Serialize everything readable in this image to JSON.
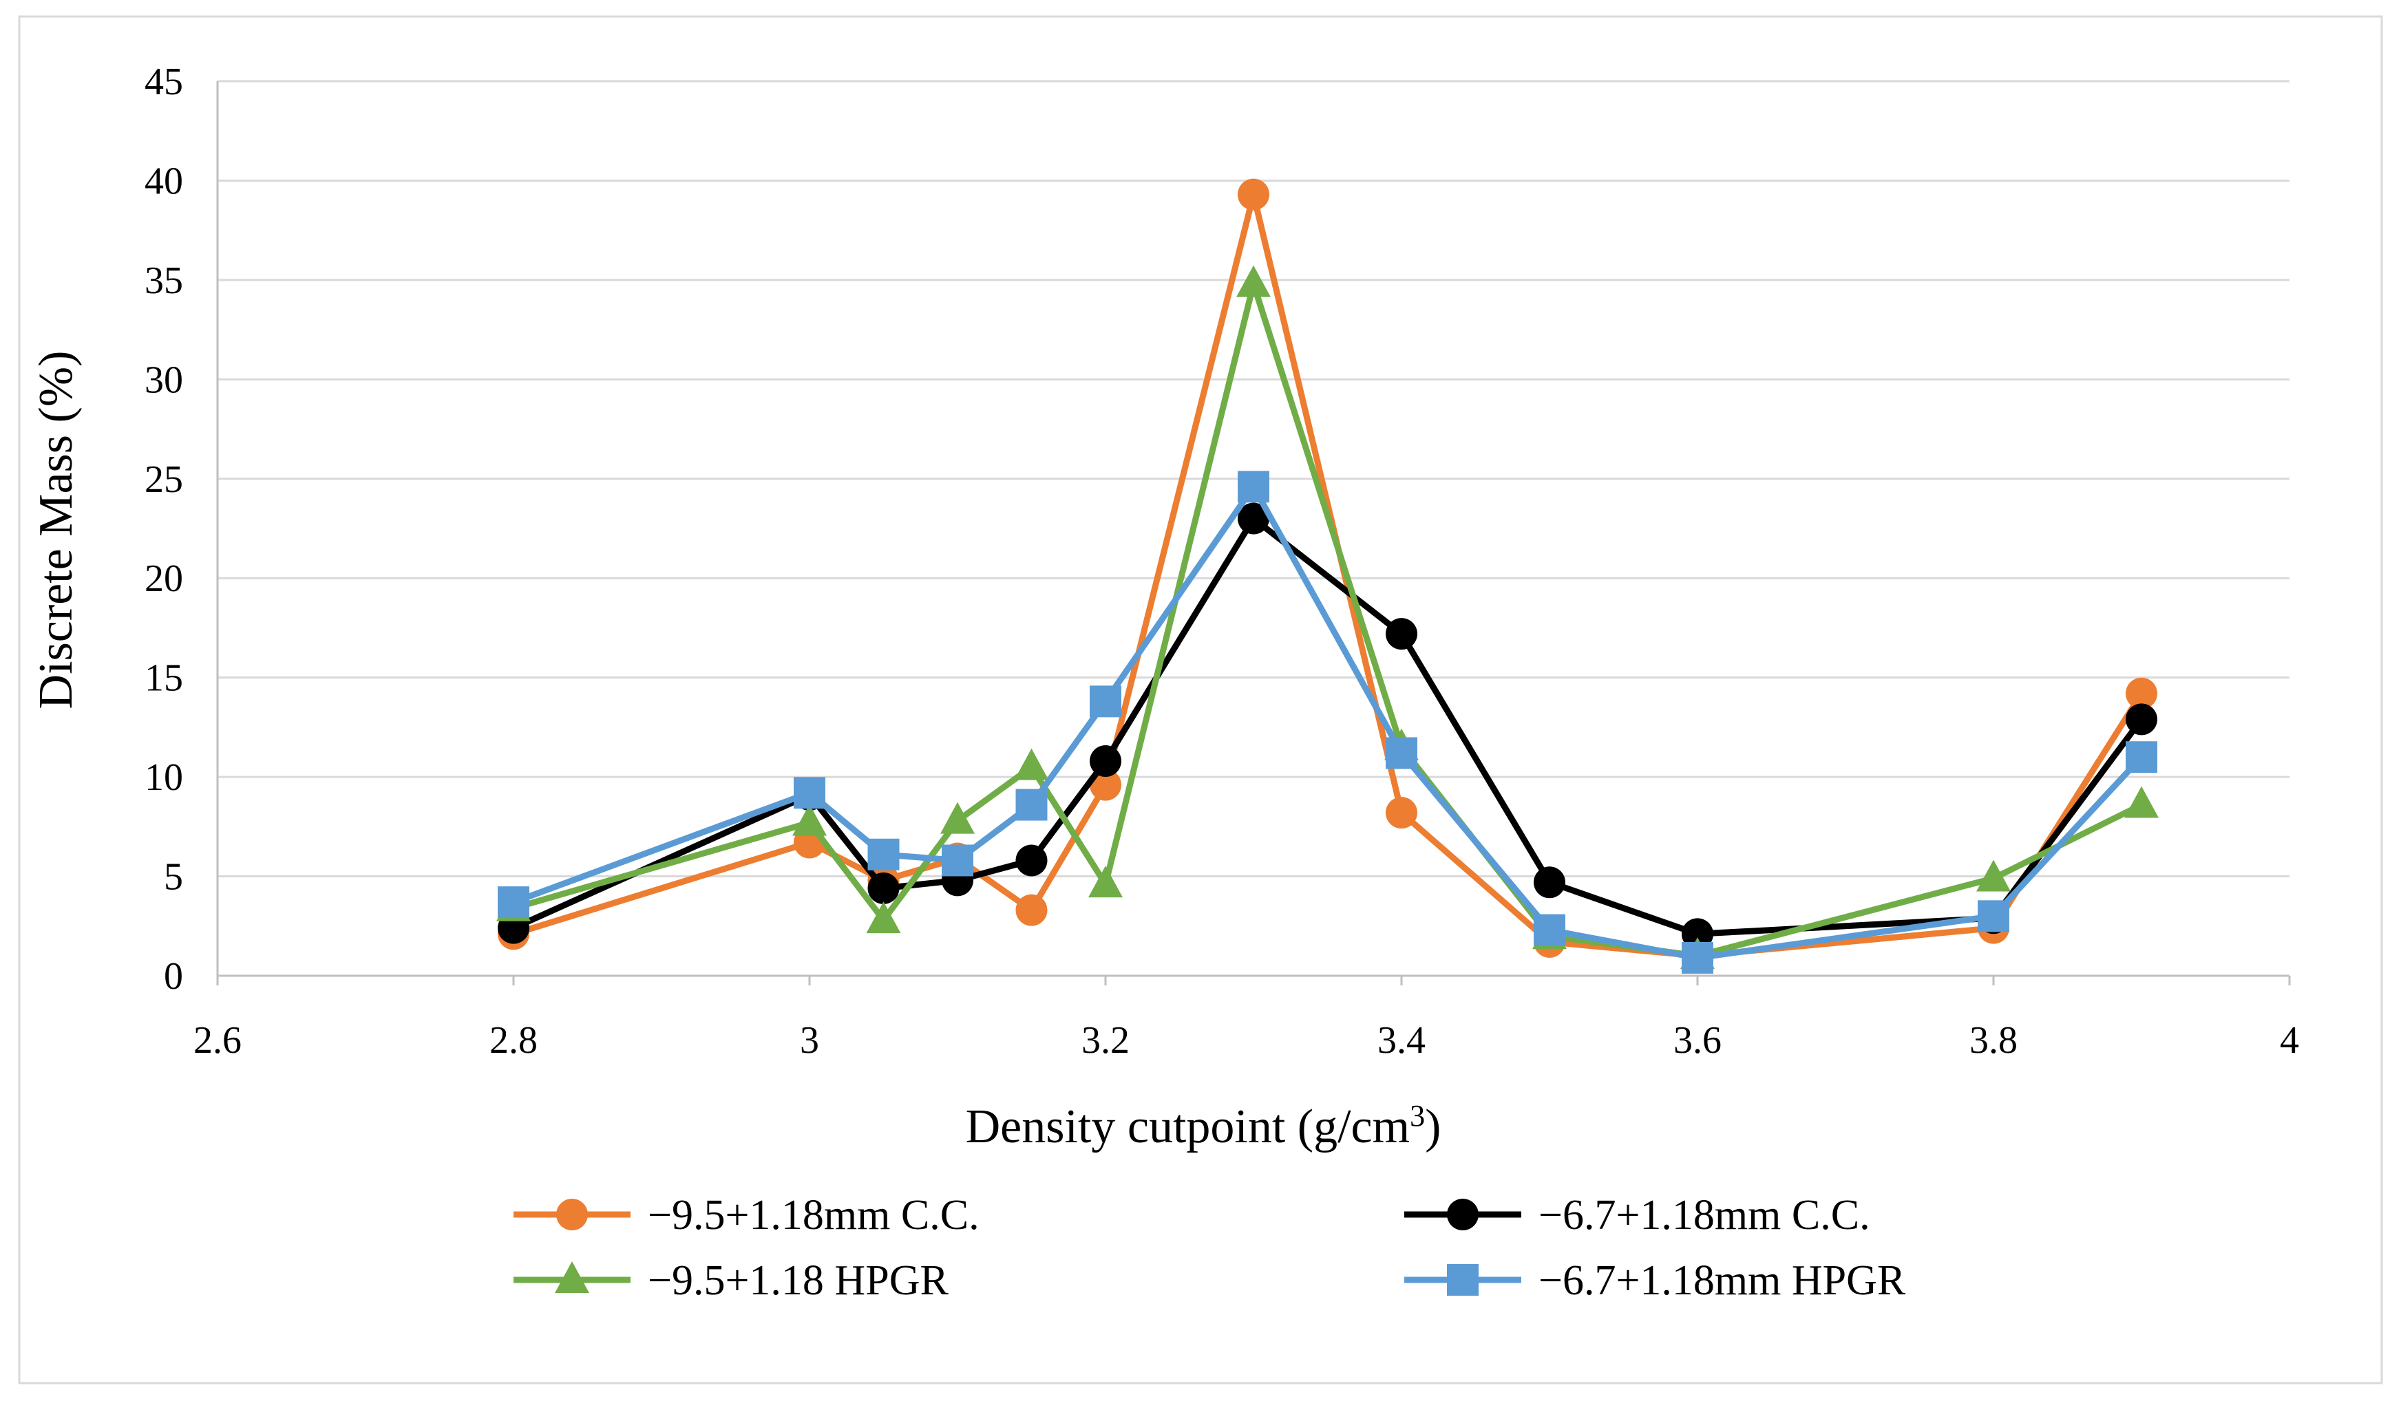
{
  "chart_data": {
    "type": "line",
    "title": "",
    "xlabel": "Density cutpoint (g/cm",
    "xlabel_superscript": "3",
    "xlabel_suffix": ")",
    "ylabel": "Discrete Mass (%)",
    "xlim": [
      2.6,
      4
    ],
    "ylim": [
      0,
      45
    ],
    "x_ticks": [
      2.6,
      2.8,
      3,
      3.2,
      3.4,
      3.6,
      3.8,
      4
    ],
    "x_tick_labels": [
      "2.6",
      "2.8",
      "3",
      "3.2",
      "3.4",
      "3.6",
      "3.8",
      "4"
    ],
    "y_ticks": [
      0,
      5,
      10,
      15,
      20,
      25,
      30,
      35,
      40,
      45
    ],
    "y_tick_labels": [
      "0",
      "5",
      "10",
      "15",
      "20",
      "25",
      "30",
      "35",
      "40",
      "45"
    ],
    "grid": "horizontal",
    "legend_position": "bottom",
    "x": [
      2.8,
      3.0,
      3.05,
      3.1,
      3.15,
      3.2,
      3.3,
      3.4,
      3.5,
      3.6,
      3.8,
      3.9
    ],
    "series": [
      {
        "name": "−9.5+1.18mm C.C.",
        "color": "#ED7D31",
        "marker": "circle",
        "values": [
          2.1,
          6.7,
          4.8,
          5.9,
          3.3,
          9.6,
          39.3,
          8.2,
          1.7,
          1.0,
          2.4,
          14.2
        ]
      },
      {
        "name": "−6.7+1.18mm C.C.",
        "color": "#000000",
        "marker": "circle",
        "values": [
          2.4,
          9.1,
          4.4,
          4.8,
          5.8,
          10.8,
          23.0,
          17.2,
          4.7,
          2.1,
          2.9,
          12.9
        ]
      },
      {
        "name": "−9.5+1.18 HPGR",
        "color": "#70AD47",
        "marker": "triangle",
        "values": [
          3.4,
          7.7,
          2.8,
          7.8,
          10.5,
          4.6,
          34.8,
          11.5,
          2.0,
          1.0,
          4.9,
          8.6
        ]
      },
      {
        "name": "−6.7+1.18mm HPGR",
        "color": "#5B9BD5",
        "marker": "square",
        "values": [
          3.7,
          9.2,
          6.1,
          5.8,
          8.6,
          13.8,
          24.6,
          11.2,
          2.3,
          0.9,
          3.0,
          11.0
        ]
      }
    ]
  },
  "style": {
    "grid_color": "#D9D9D9",
    "axis_color": "#BFBFBF",
    "frame_color": "#D9D9D9"
  }
}
